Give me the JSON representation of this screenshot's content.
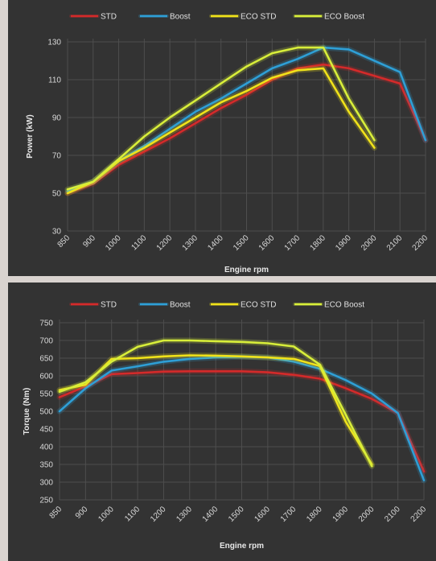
{
  "chart_data": [
    {
      "type": "line",
      "xlabel": "Engine rpm",
      "ylabel": "Power (kW)",
      "ylim": [
        30,
        130
      ],
      "yticks": [
        30,
        50,
        70,
        90,
        110,
        130
      ],
      "categories": [
        "850",
        "900",
        "1000",
        "1100",
        "1200",
        "1300",
        "1400",
        "1500",
        "1600",
        "1700",
        "1800",
        "1900",
        "2000",
        "2100",
        "2200"
      ],
      "grid": true,
      "legend_position": "top",
      "series": [
        {
          "name": "STD",
          "color": "#d42a2a",
          "values": [
            50,
            55,
            65,
            72,
            79,
            87,
            95,
            102,
            110,
            116,
            118,
            116,
            112,
            108,
            78
          ]
        },
        {
          "name": "Boost",
          "color": "#2e9fd6",
          "values": [
            51,
            56,
            67,
            75,
            84,
            93,
            100,
            108,
            116,
            121,
            127,
            126,
            120,
            114,
            78
          ]
        },
        {
          "name": "ECO STD",
          "color": "#f0e21a",
          "values": [
            50,
            56,
            67,
            74,
            82,
            90,
            98,
            104,
            111,
            115,
            116,
            93,
            74,
            null,
            null
          ]
        },
        {
          "name": "ECO Boost",
          "color": "#d8ee3a",
          "values": [
            52,
            56,
            68,
            80,
            90,
            99,
            108,
            117,
            124,
            127,
            127,
            100,
            78,
            null,
            null
          ]
        }
      ]
    },
    {
      "type": "line",
      "xlabel": "Engine rpm",
      "ylabel": "Torque (Nm)",
      "ylim": [
        250,
        750
      ],
      "yticks": [
        250,
        300,
        350,
        400,
        450,
        500,
        550,
        600,
        650,
        700,
        750
      ],
      "categories": [
        "850",
        "900",
        "1000",
        "1100",
        "1200",
        "1300",
        "1400",
        "1500",
        "1600",
        "1700",
        "1800",
        "1900",
        "2000",
        "2100",
        "2200"
      ],
      "grid": true,
      "legend_position": "top",
      "series": [
        {
          "name": "STD",
          "color": "#d42a2a",
          "values": [
            540,
            570,
            605,
            608,
            612,
            613,
            613,
            613,
            610,
            603,
            592,
            565,
            535,
            495,
            330
          ]
        },
        {
          "name": "Boost",
          "color": "#2e9fd6",
          "values": [
            500,
            565,
            615,
            627,
            640,
            648,
            652,
            654,
            652,
            640,
            620,
            588,
            550,
            495,
            305
          ]
        },
        {
          "name": "ECO STD",
          "color": "#f0e21a",
          "values": [
            560,
            575,
            648,
            650,
            655,
            658,
            657,
            655,
            652,
            648,
            628,
            470,
            350,
            null,
            null
          ]
        },
        {
          "name": "ECO Boost",
          "color": "#d8ee3a",
          "values": [
            555,
            582,
            640,
            682,
            700,
            700,
            698,
            696,
            692,
            683,
            632,
            490,
            345,
            null,
            null
          ]
        }
      ]
    }
  ]
}
